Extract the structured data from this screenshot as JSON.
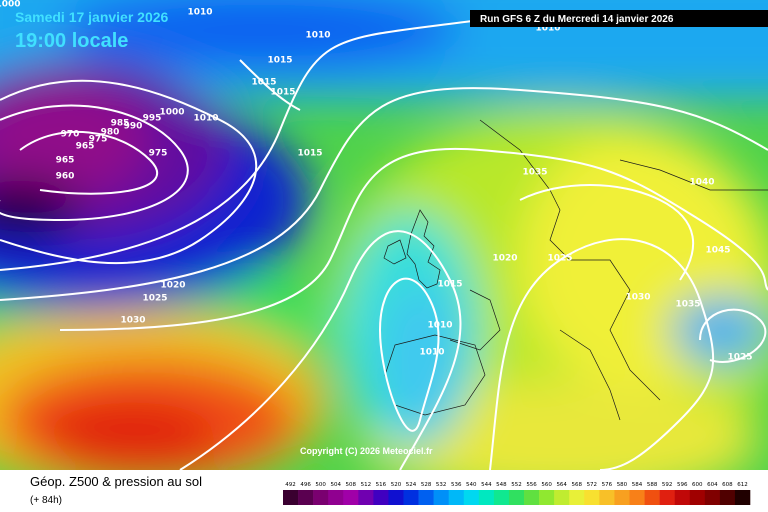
{
  "header": {
    "date": "Samedi 17 janvier 2026",
    "time": "19:00 locale",
    "run": "Run GFS 6 Z du Mercredi 14 janvier 2026"
  },
  "copyright": "Copyright (C) 2026 Meteociel.fr",
  "isobars": {
    "labels": [
      1000,
      1010,
      1010,
      1015,
      1015,
      1015,
      1000,
      1010,
      995,
      990,
      985,
      980,
      975,
      970,
      965,
      965,
      960,
      975,
      1015,
      1035,
      1040,
      1045,
      1020,
      1025,
      1030,
      1035,
      1025,
      1020,
      1025,
      1030,
      1015,
      1010,
      1010,
      1010
    ]
  },
  "legend": {
    "title": "Géop. Z500 & pression au sol",
    "subtitle": "(+ 84h)"
  },
  "colorbar": {
    "values": [
      492,
      496,
      500,
      504,
      508,
      512,
      516,
      520,
      524,
      528,
      532,
      536,
      540,
      544,
      548,
      552,
      556,
      560,
      564,
      568,
      572,
      576,
      580,
      584,
      588,
      592,
      596,
      600,
      604,
      608,
      612
    ]
  }
}
